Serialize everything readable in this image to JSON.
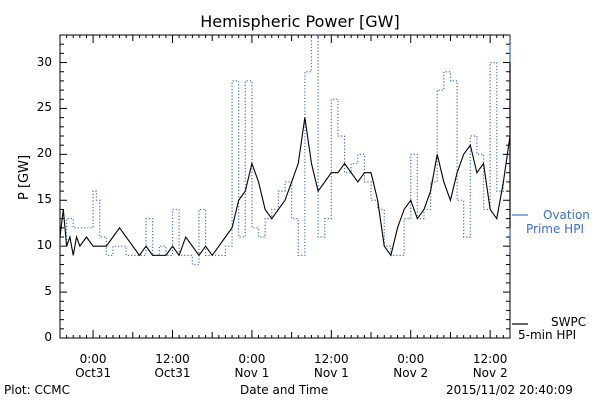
{
  "title": "Hemispheric Power [GW]",
  "footer": {
    "left": "Plot: CCMC",
    "center": "Date and Time",
    "right": "2015/11/02 20:40:09"
  },
  "legend": {
    "ovation_line1": "Ovation",
    "ovation_line2": "Prime HPI",
    "swpc_line1": "SWPC",
    "swpc_line2": "5-min HPI"
  },
  "colors": {
    "ovation": "#3a6ed8",
    "swpc": "#000000",
    "axis": "#000000"
  },
  "chart_data": {
    "type": "line",
    "title": "Hemispheric Power [GW]",
    "xlabel": "Date and Time",
    "ylabel": "P [GW]",
    "ylim": [
      0,
      33
    ],
    "xlim_hours": [
      -5,
      63
    ],
    "yticks": [
      0,
      5,
      10,
      15,
      20,
      25,
      30
    ],
    "xticks": [
      {
        "h": 0,
        "line1": "0:00",
        "line2": "Oct31"
      },
      {
        "h": 12,
        "line1": "12:00",
        "line2": "Oct31"
      },
      {
        "h": 24,
        "line1": "0:00",
        "line2": "Nov 1"
      },
      {
        "h": 36,
        "line1": "12:00",
        "line2": "Nov 1"
      },
      {
        "h": 48,
        "line1": "0:00",
        "line2": "Nov 2"
      },
      {
        "h": 60,
        "line1": "12:00",
        "line2": "Nov 2"
      }
    ],
    "series": [
      {
        "name": "Ovation Prime HPI",
        "style": "dotted-step",
        "points": [
          [
            -5,
            10
          ],
          [
            -4,
            13
          ],
          [
            -3,
            12
          ],
          [
            -1,
            12
          ],
          [
            0,
            16
          ],
          [
            0.5,
            15
          ],
          [
            1,
            11
          ],
          [
            2,
            9
          ],
          [
            3,
            10
          ],
          [
            5,
            9
          ],
          [
            8,
            13
          ],
          [
            9,
            9
          ],
          [
            10,
            10
          ],
          [
            11,
            9
          ],
          [
            12,
            14
          ],
          [
            13,
            9
          ],
          [
            15,
            8
          ],
          [
            16,
            14
          ],
          [
            17,
            9
          ],
          [
            20,
            10
          ],
          [
            21,
            28
          ],
          [
            22,
            11
          ],
          [
            23,
            28
          ],
          [
            24,
            12
          ],
          [
            25,
            11
          ],
          [
            26,
            13
          ],
          [
            27,
            14
          ],
          [
            28,
            16
          ],
          [
            29,
            17
          ],
          [
            30,
            13
          ],
          [
            31,
            9
          ],
          [
            32,
            29
          ],
          [
            33,
            33
          ],
          [
            34,
            11
          ],
          [
            35,
            13
          ],
          [
            36,
            26
          ],
          [
            37,
            22
          ],
          [
            38,
            18
          ],
          [
            39,
            19
          ],
          [
            40,
            20
          ],
          [
            41,
            17
          ],
          [
            42,
            15
          ],
          [
            43,
            14
          ],
          [
            44,
            10
          ],
          [
            45,
            9
          ],
          [
            47,
            13
          ],
          [
            48,
            20
          ],
          [
            49,
            13
          ],
          [
            50,
            14
          ],
          [
            51,
            17
          ],
          [
            52,
            27
          ],
          [
            53,
            29
          ],
          [
            54,
            28
          ],
          [
            55,
            15
          ],
          [
            56,
            11
          ],
          [
            57,
            22
          ],
          [
            58,
            20
          ],
          [
            59,
            14
          ],
          [
            60,
            30
          ],
          [
            61,
            16
          ],
          [
            62,
            17
          ],
          [
            63,
            33
          ],
          [
            64,
            11
          ],
          [
            65,
            32
          ],
          [
            66,
            15
          ],
          [
            67,
            11
          ],
          [
            70,
            9
          ]
        ]
      },
      {
        "name": "SWPC 5-min HPI",
        "style": "solid",
        "points": [
          [
            -5,
            11
          ],
          [
            -4.5,
            14
          ],
          [
            -4,
            10
          ],
          [
            -3.5,
            11
          ],
          [
            -3,
            9
          ],
          [
            -2.5,
            11
          ],
          [
            -2,
            10
          ],
          [
            -1,
            11
          ],
          [
            0,
            10
          ],
          [
            2,
            10
          ],
          [
            3,
            11
          ],
          [
            4,
            12
          ],
          [
            5,
            11
          ],
          [
            6,
            10
          ],
          [
            7,
            9
          ],
          [
            8,
            10
          ],
          [
            9,
            9
          ],
          [
            11,
            9
          ],
          [
            12,
            10
          ],
          [
            13,
            9
          ],
          [
            14,
            11
          ],
          [
            15,
            10
          ],
          [
            16,
            9
          ],
          [
            17,
            10
          ],
          [
            18,
            9
          ],
          [
            19,
            10
          ],
          [
            20,
            11
          ],
          [
            21,
            12
          ],
          [
            22,
            15
          ],
          [
            23,
            16
          ],
          [
            24,
            19
          ],
          [
            25,
            17
          ],
          [
            26,
            14
          ],
          [
            27,
            13
          ],
          [
            28,
            14
          ],
          [
            29,
            15
          ],
          [
            30,
            17
          ],
          [
            31,
            19
          ],
          [
            32,
            24
          ],
          [
            33,
            19
          ],
          [
            34,
            16
          ],
          [
            35,
            17
          ],
          [
            36,
            18
          ],
          [
            37,
            18
          ],
          [
            38,
            19
          ],
          [
            39,
            18
          ],
          [
            40,
            17
          ],
          [
            41,
            18
          ],
          [
            42,
            18
          ],
          [
            43,
            15
          ],
          [
            44,
            10
          ],
          [
            45,
            9
          ],
          [
            46,
            12
          ],
          [
            47,
            14
          ],
          [
            48,
            15
          ],
          [
            49,
            13
          ],
          [
            50,
            14
          ],
          [
            51,
            16
          ],
          [
            52,
            20
          ],
          [
            53,
            17
          ],
          [
            54,
            15
          ],
          [
            55,
            18
          ],
          [
            56,
            20
          ],
          [
            57,
            21
          ],
          [
            58,
            18
          ],
          [
            59,
            19
          ],
          [
            60,
            14
          ],
          [
            61,
            13
          ],
          [
            62,
            17
          ],
          [
            63,
            22
          ],
          [
            64,
            27
          ],
          [
            65,
            30
          ],
          [
            66,
            28
          ],
          [
            67,
            30
          ],
          [
            68,
            24
          ],
          [
            69,
            15
          ],
          [
            70,
            12
          ]
        ]
      }
    ]
  }
}
